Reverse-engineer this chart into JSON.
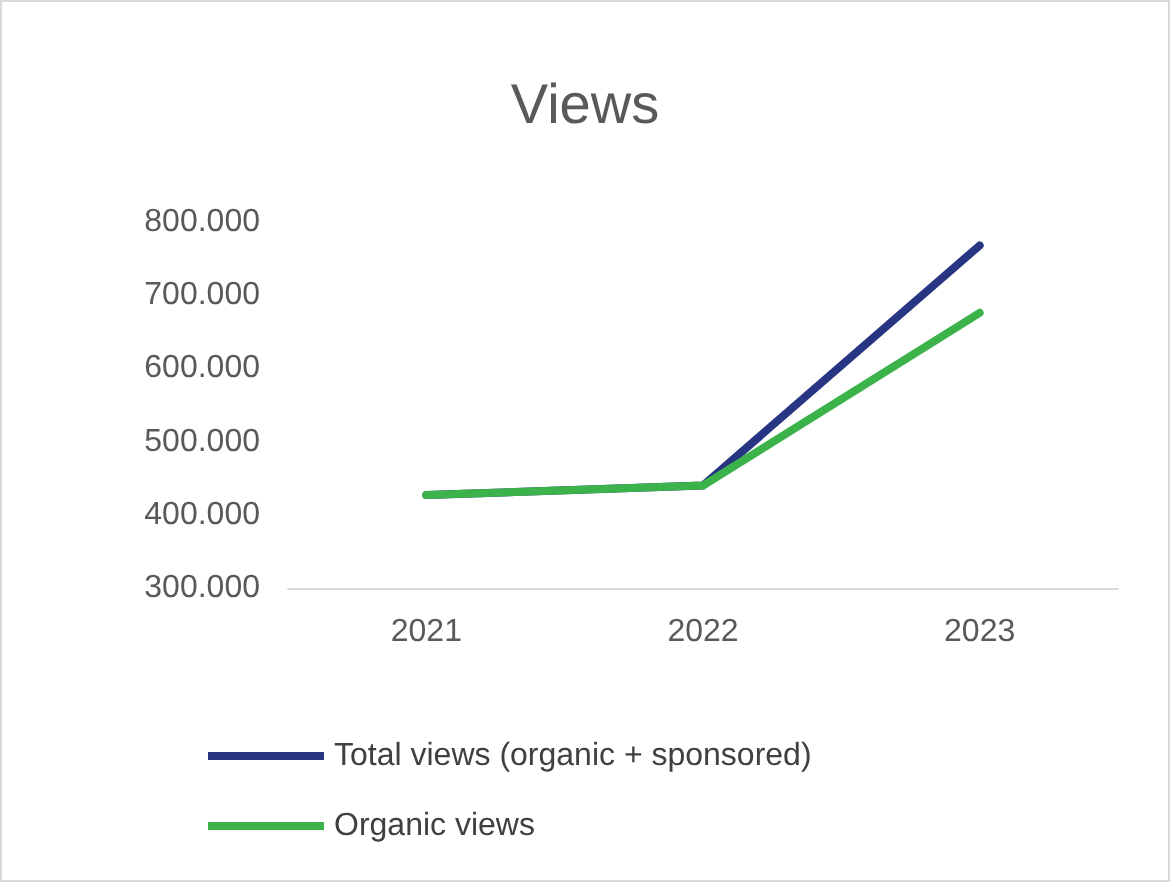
{
  "chart_data": {
    "type": "line",
    "title": "Views",
    "categories": [
      "2021",
      "2022",
      "2023"
    ],
    "series": [
      {
        "name": "Total views (organic + sponsored)",
        "color": "#283583",
        "values": [
          427000,
          440000,
          768000
        ]
      },
      {
        "name": "Organic views",
        "color": "#3cb34a",
        "values": [
          427000,
          440000,
          676000
        ]
      }
    ],
    "ylim": [
      300000,
      800000
    ],
    "yticks": [
      {
        "value": 300000,
        "label": "300.000"
      },
      {
        "value": 400000,
        "label": "400.000"
      },
      {
        "value": 500000,
        "label": "500.000"
      },
      {
        "value": 600000,
        "label": "600.000"
      },
      {
        "value": 700000,
        "label": "700.000"
      },
      {
        "value": 800000,
        "label": "800.000"
      }
    ],
    "grid": false,
    "legend": "bottom",
    "marker": "none",
    "line_style": "solid"
  }
}
